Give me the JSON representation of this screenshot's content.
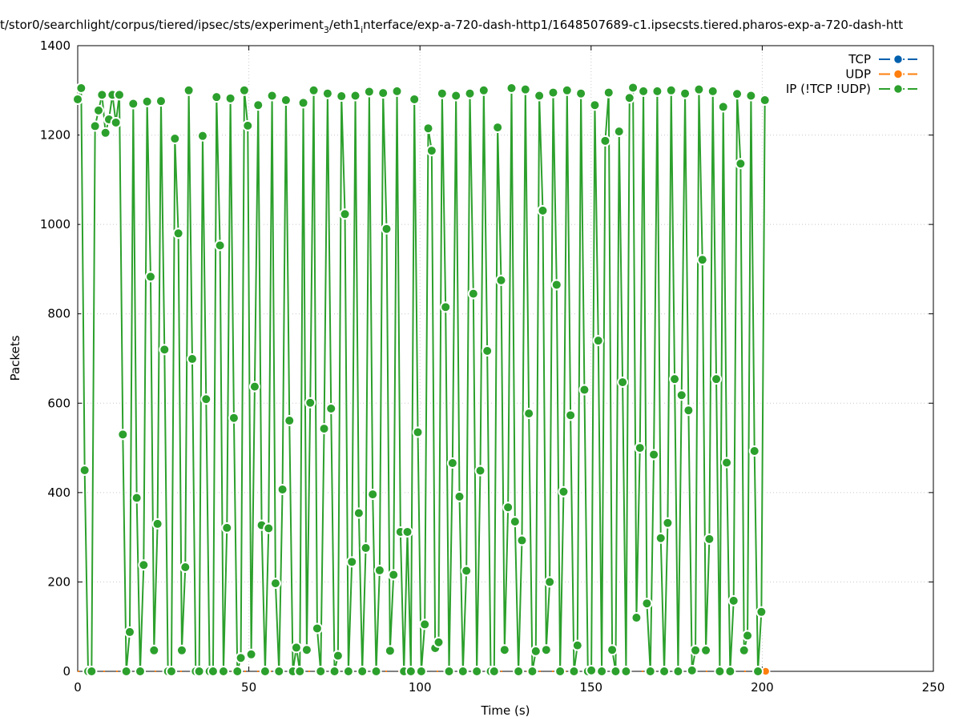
{
  "chart_data": {
    "type": "line",
    "title_parts": [
      "t/stor0/searchlight/corpus/tiered/ipsec/sts/experiment",
      "3",
      "/eth1",
      "i",
      "nterface/exp-a-720-dash-http1/1648507689-c1.ipsecsts.tiered.pharos-exp-a-720-dash-htt"
    ],
    "xlabel": "Time (s)",
    "ylabel": "Packets",
    "xlim": [
      0,
      250
    ],
    "ylim": [
      0,
      1400
    ],
    "xticks": [
      0,
      50,
      100,
      150,
      200,
      250
    ],
    "yticks": [
      0,
      200,
      400,
      600,
      800,
      1000,
      1200,
      1400
    ],
    "grid": true,
    "legend_position": "top-right",
    "series": [
      {
        "name": "TCP",
        "color": "#0060ad",
        "x": [],
        "values": []
      },
      {
        "name": "UDP",
        "color": "#ff7f0e",
        "x": [
          0,
          201
        ],
        "values": [
          0,
          0
        ],
        "markers_at": [
          201
        ]
      },
      {
        "name": "IP (!TCP  !UDP)",
        "color": "#2ca02c",
        "x_start": 0,
        "x_step": 1.014,
        "values": [
          1280,
          1305,
          450,
          0,
          0,
          1220,
          1255,
          1290,
          1205,
          1235,
          1290,
          1228,
          1290,
          530,
          0,
          88,
          1270,
          388,
          0,
          238,
          1275,
          883,
          47,
          330,
          1276,
          720,
          0,
          0,
          1192,
          980,
          47,
          233,
          1300,
          699,
          0,
          0,
          1198,
          609,
          0,
          0,
          1285,
          953,
          0,
          321,
          1282,
          567,
          0,
          30,
          1300,
          1221,
          38,
          637,
          1267,
          327,
          0,
          320,
          1288,
          197,
          0,
          407,
          1278,
          561,
          0,
          53,
          0,
          1272,
          48,
          601,
          1300,
          96,
          0,
          543,
          1293,
          588,
          0,
          35,
          1287,
          1023,
          0,
          245,
          1288,
          354,
          0,
          276,
          1297,
          396,
          0,
          226,
          1294,
          990,
          46,
          216,
          1298,
          312,
          0,
          312,
          0,
          1280,
          535,
          0,
          105,
          1215,
          1165,
          52,
          65,
          1293,
          815,
          0,
          466,
          1288,
          391,
          0,
          225,
          1293,
          845,
          0,
          449,
          1300,
          717,
          0,
          0,
          1217,
          875,
          48,
          367,
          1305,
          335,
          0,
          293,
          1302,
          577,
          0,
          45,
          1288,
          1031,
          48,
          200,
          1295,
          865,
          0,
          402,
          1300,
          573,
          0,
          58,
          1293,
          630,
          0,
          2,
          1267,
          740,
          0,
          1187,
          1295,
          48,
          0,
          1208,
          647,
          0,
          1283,
          1306,
          120,
          500,
          1298,
          152,
          0,
          485,
          1298,
          298,
          0,
          332,
          1300,
          654,
          0,
          618,
          1293,
          584,
          2,
          47,
          1302,
          921,
          47,
          296,
          1298,
          654,
          0,
          1263,
          467,
          0,
          158,
          1292,
          1136,
          47,
          80,
          1288,
          493,
          0,
          133,
          1278
        ]
      }
    ]
  }
}
